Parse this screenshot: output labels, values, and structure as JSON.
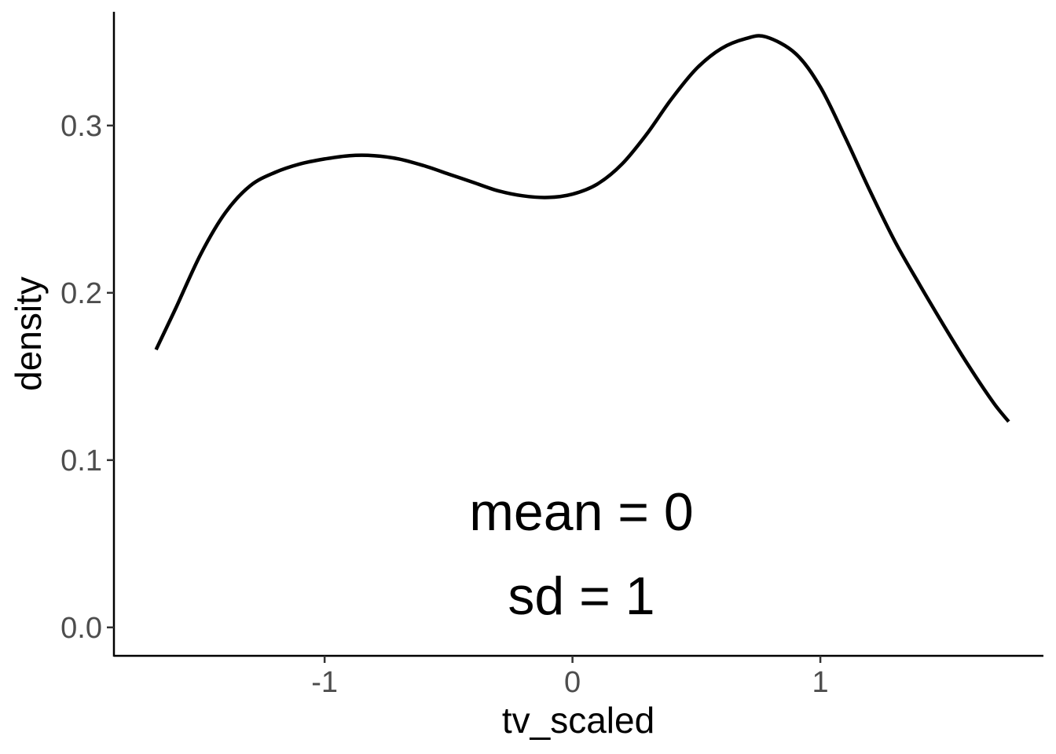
{
  "chart_data": {
    "type": "line",
    "title": "",
    "xlabel": "tv_scaled",
    "ylabel": "density",
    "xlim": [
      -1.85,
      1.9
    ],
    "ylim": [
      -0.017,
      0.368
    ],
    "x_ticks": [
      -1,
      0,
      1
    ],
    "x_tick_labels": [
      "-1",
      "0",
      "1"
    ],
    "y_ticks": [
      0.0,
      0.1,
      0.2,
      0.3
    ],
    "y_tick_labels": [
      "0.0",
      "0.1",
      "0.2",
      "0.3"
    ],
    "grid": false,
    "series": [
      {
        "color": "#000000",
        "x": [
          -1.68,
          -1.6,
          -1.5,
          -1.4,
          -1.3,
          -1.2,
          -1.1,
          -1.0,
          -0.9,
          -0.8,
          -0.7,
          -0.6,
          -0.5,
          -0.4,
          -0.3,
          -0.2,
          -0.1,
          0.0,
          0.1,
          0.2,
          0.3,
          0.4,
          0.5,
          0.6,
          0.7,
          0.78,
          0.9,
          1.0,
          1.1,
          1.2,
          1.3,
          1.4,
          1.5,
          1.6,
          1.7,
          1.76
        ],
        "y": [
          0.166,
          0.191,
          0.223,
          0.248,
          0.264,
          0.272,
          0.277,
          0.28,
          0.282,
          0.282,
          0.28,
          0.276,
          0.271,
          0.266,
          0.261,
          0.258,
          0.257,
          0.259,
          0.265,
          0.277,
          0.295,
          0.316,
          0.334,
          0.346,
          0.352,
          0.353,
          0.343,
          0.323,
          0.293,
          0.261,
          0.231,
          0.205,
          0.18,
          0.156,
          0.134,
          0.123
        ]
      }
    ],
    "annotations": [
      "mean = 0",
      "sd = 1"
    ]
  }
}
